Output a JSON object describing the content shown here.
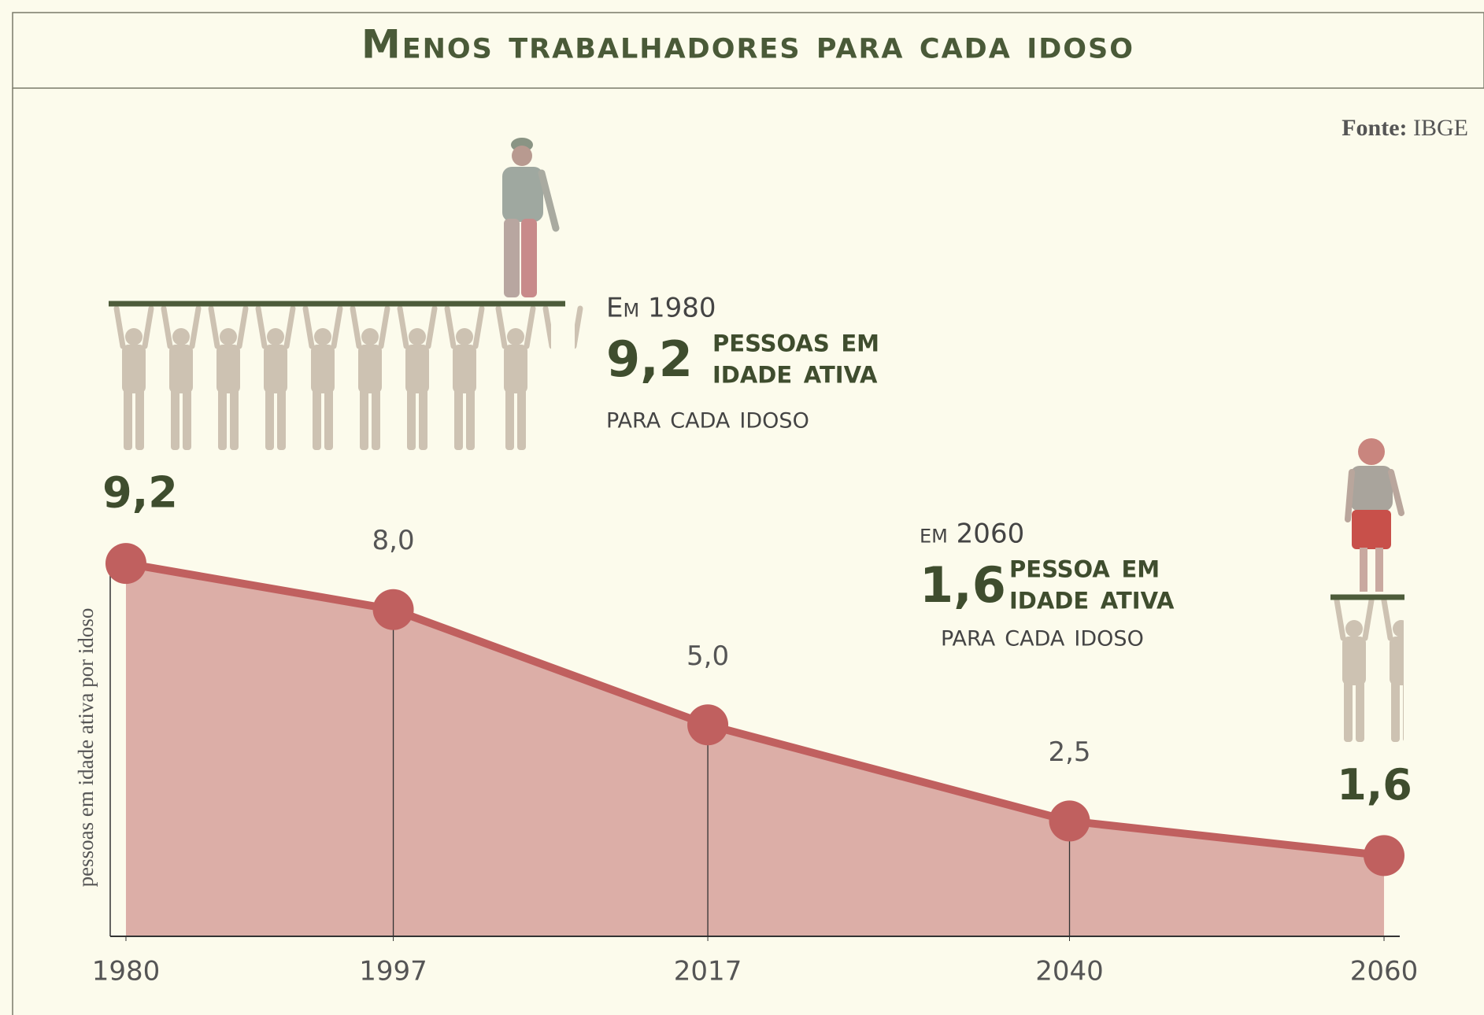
{
  "chart_data": {
    "type": "line",
    "title": "Menos trabalhadores para cada idoso",
    "source": {
      "label": "Fonte:",
      "text": "IBGE"
    },
    "y_label": "pessoas em idade ativa por idoso",
    "x": [
      1980,
      1997,
      2017,
      2040,
      2060
    ],
    "values": [
      9.2,
      8.0,
      5.0,
      2.5,
      1.6
    ],
    "value_labels": [
      "9,2",
      "8,0",
      "5,0",
      "2,5",
      "1,6"
    ],
    "color": "#c0605f",
    "fill": "#dcaea7",
    "xlim": [
      1979,
      2061
    ],
    "xticks": [
      1980,
      1997,
      2017,
      2040,
      2060
    ],
    "ylim": [
      -0.5,
      10
    ],
    "annotations": [
      {
        "year": "Em 1980",
        "value": "9,2",
        "lines": [
          "pessoas em",
          "idade ativa"
        ],
        "tail": "para cada idoso"
      },
      {
        "year": "em 2060",
        "value": "1,6",
        "lines": [
          "pessoa em",
          "idade ativa"
        ],
        "tail": "para cada idoso"
      }
    ]
  }
}
